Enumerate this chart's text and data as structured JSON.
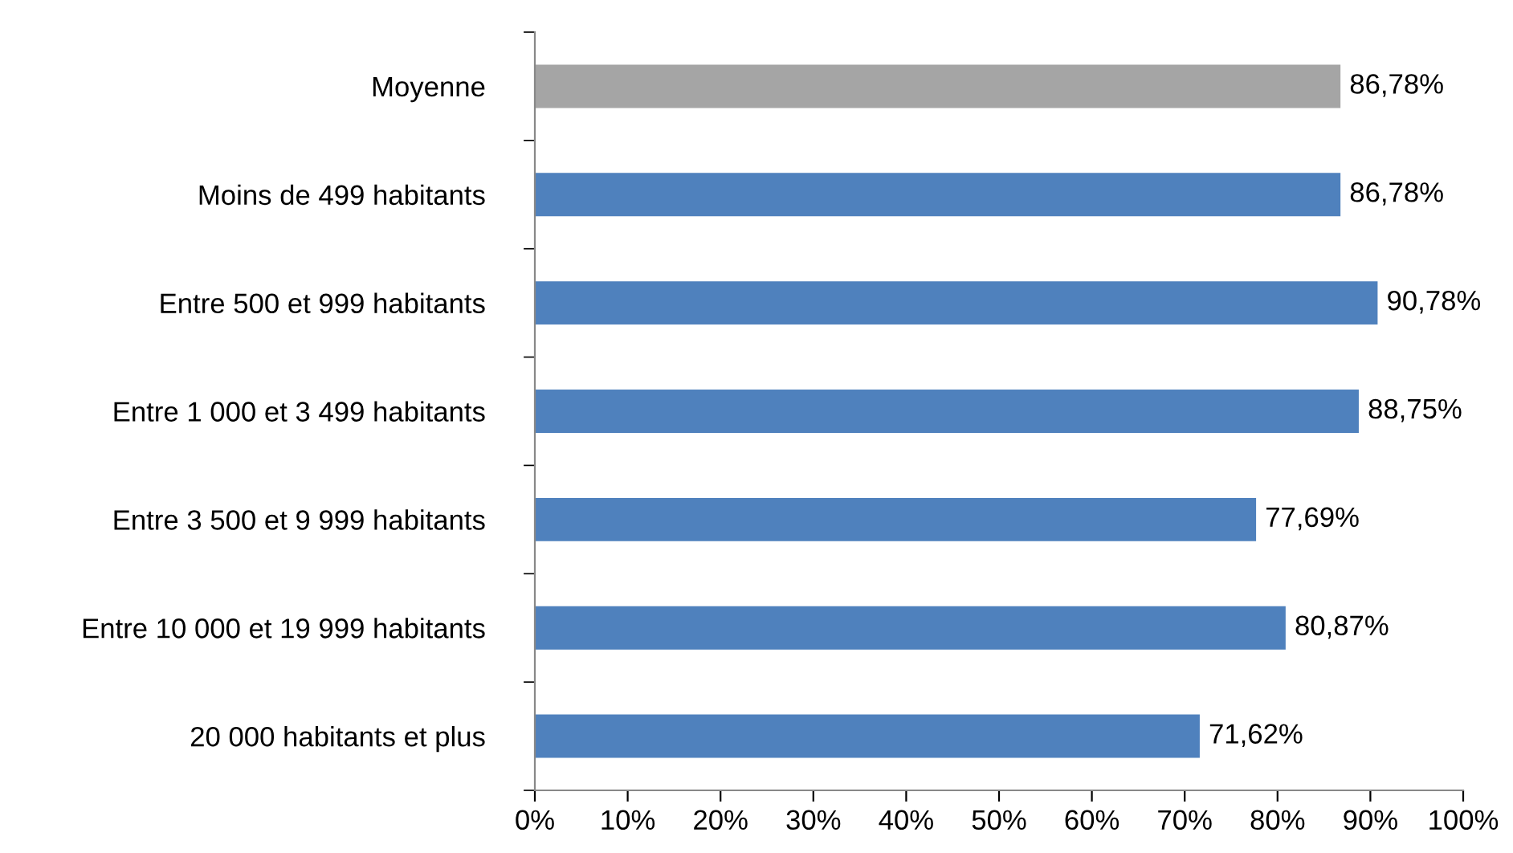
{
  "chart_data": {
    "type": "bar",
    "orientation": "horizontal",
    "categories": [
      "Moyenne",
      "Moins de 499 habitants",
      "Entre 500 et 999 habitants",
      "Entre 1 000 et 3 499 habitants",
      "Entre 3 500 et 9 999 habitants",
      "Entre 10 000 et 19 999 habitants",
      "20 000 habitants et plus"
    ],
    "values": [
      86.78,
      86.78,
      90.78,
      88.75,
      77.69,
      80.87,
      71.62
    ],
    "colors": [
      "#a5a5a5",
      "#4f81bd",
      "#4f81bd",
      "#4f81bd",
      "#4f81bd",
      "#4f81bd",
      "#4f81bd"
    ],
    "value_labels": [
      "86,78%",
      "86,78%",
      "90,78%",
      "88,75%",
      "77,69%",
      "80,87%",
      "71,62%"
    ],
    "xlim": [
      0,
      100
    ],
    "xticks": [
      {
        "value": 0,
        "label": "0%"
      },
      {
        "value": 10,
        "label": "10%"
      },
      {
        "value": 20,
        "label": "20%"
      },
      {
        "value": 30,
        "label": "30%"
      },
      {
        "value": 40,
        "label": "40%"
      },
      {
        "value": 50,
        "label": "50%"
      },
      {
        "value": 60,
        "label": "60%"
      },
      {
        "value": 70,
        "label": "70%"
      },
      {
        "value": 80,
        "label": "80%"
      },
      {
        "value": 90,
        "label": "90%"
      },
      {
        "value": 100,
        "label": "100%"
      }
    ],
    "grid": false
  }
}
